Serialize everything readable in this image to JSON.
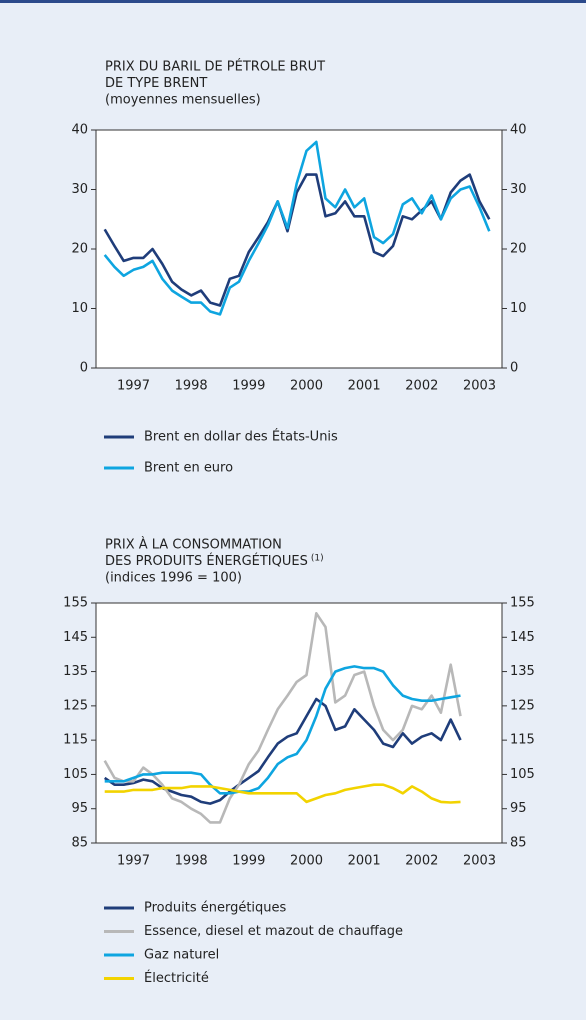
{
  "chart_data": [
    {
      "type": "line",
      "title": [
        "PRIX DU BARIL DE PÉTROLE BRUT",
        "DE TYPE BRENT"
      ],
      "subtitle": "(moyennes mensuelles)",
      "x": [
        1997,
        1997.17,
        1997.33,
        1997.5,
        1997.67,
        1997.83,
        1998,
        1998.17,
        1998.33,
        1998.5,
        1998.67,
        1998.83,
        1999,
        1999.17,
        1999.33,
        1999.5,
        1999.67,
        1999.83,
        2000,
        2000.17,
        2000.33,
        2000.5,
        2000.67,
        2000.83,
        2001,
        2001.17,
        2001.33,
        2001.5,
        2001.67,
        2001.83,
        2002,
        2002.17,
        2002.33,
        2002.5,
        2002.67,
        2002.83,
        2003,
        2003.17,
        2003.33,
        2003.5,
        2003.67
      ],
      "series": [
        {
          "name": "Brent en dollar des États-Unis",
          "color": "#1f3d7a",
          "values": [
            23.3,
            20.5,
            18,
            18.5,
            18.5,
            20,
            17.5,
            14.5,
            13.2,
            12.2,
            13,
            11,
            10.5,
            15,
            15.5,
            19.5,
            22,
            24.5,
            28,
            23,
            29.5,
            32.5,
            32.5,
            25.5,
            26,
            28,
            25.5,
            25.5,
            19.5,
            18.8,
            20.5,
            25.5,
            25,
            26.5,
            28,
            25,
            29.5,
            31.5,
            32.5,
            28,
            25
          ]
        },
        {
          "name": "Brent en euro",
          "color": "#0ea5e0",
          "values": [
            19,
            17,
            15.5,
            16.5,
            17,
            18,
            15,
            13,
            12,
            11,
            11,
            9.5,
            9,
            13.5,
            14.5,
            18,
            21,
            24,
            28,
            23.5,
            31,
            36.5,
            38,
            28.5,
            27,
            30,
            27,
            28.5,
            22,
            21,
            22.5,
            27.5,
            28.5,
            26,
            29,
            25,
            28.5,
            30,
            30.5,
            27,
            23
          ]
        }
      ],
      "xlim": [
        1996.85,
        2003.89
      ],
      "xticks": [
        {
          "value": 1997.5,
          "label": "1997"
        },
        {
          "value": 1998.5,
          "label": "1998"
        },
        {
          "value": 1999.5,
          "label": "1999"
        },
        {
          "value": 2000.5,
          "label": "2000"
        },
        {
          "value": 2001.5,
          "label": "2001"
        },
        {
          "value": 2002.5,
          "label": "2002"
        },
        {
          "value": 2003.5,
          "label": "2003"
        }
      ],
      "ylim": [
        0,
        40
      ],
      "yticks": [
        0,
        10,
        20,
        30,
        40
      ],
      "y2lim": [
        0,
        40
      ],
      "y2ticks": [
        0,
        10,
        20,
        30,
        40
      ]
    },
    {
      "type": "line",
      "title": [
        "PRIX À LA CONSOMMATION",
        "DES PRODUITS ÉNERGÉTIQUES"
      ],
      "title_note": "(1)",
      "subtitle": "(indices 1996 = 100)",
      "x": [
        1997,
        1997.17,
        1997.33,
        1997.5,
        1997.67,
        1997.83,
        1998,
        1998.17,
        1998.33,
        1998.5,
        1998.67,
        1998.83,
        1999,
        1999.17,
        1999.33,
        1999.5,
        1999.67,
        1999.83,
        2000,
        2000.17,
        2000.33,
        2000.5,
        2000.67,
        2000.83,
        2001,
        2001.17,
        2001.33,
        2001.5,
        2001.67,
        2001.83,
        2002,
        2002.17,
        2002.33,
        2002.5,
        2002.67,
        2002.83,
        2003,
        2003.17
      ],
      "series": [
        {
          "name": "Produits énergétiques",
          "color": "#1f3d7a",
          "values": [
            104,
            102,
            102,
            102.5,
            103.5,
            103,
            101,
            100,
            99,
            98.5,
            97,
            96.5,
            97.5,
            100,
            102,
            104,
            106,
            110,
            114,
            116,
            117,
            122,
            127,
            125,
            118,
            119,
            124,
            121,
            118,
            114,
            113,
            117,
            114,
            116,
            117,
            115,
            121,
            115
          ]
        },
        {
          "name": "Essence, diesel et mazout de chauffage",
          "color": "#b8b8b8",
          "values": [
            109,
            104,
            103,
            103,
            107,
            105,
            102,
            98,
            97,
            95,
            93.5,
            91,
            91,
            98,
            102,
            108,
            112,
            118,
            124,
            128,
            132,
            134,
            152,
            148,
            126,
            128,
            134,
            135,
            125,
            118,
            115,
            118,
            125,
            124,
            128,
            123,
            137,
            122
          ]
        },
        {
          "name": "Gaz naturel",
          "color": "#0ea5e0",
          "values": [
            103,
            103,
            103,
            104,
            105,
            105,
            105.5,
            105.5,
            105.5,
            105.5,
            105,
            102,
            99.5,
            99.5,
            100,
            100,
            101,
            104,
            108,
            110,
            111,
            115,
            122,
            130,
            135,
            136,
            136.5,
            136,
            136,
            135,
            131,
            128,
            127,
            126.5,
            126.5,
            127,
            127.5,
            128
          ]
        },
        {
          "name": "Électricité",
          "color": "#f2d300",
          "values": [
            100,
            100,
            100,
            100.5,
            100.5,
            100.5,
            101,
            101,
            101,
            101.5,
            101.5,
            101.5,
            101,
            100.5,
            100,
            99.5,
            99.5,
            99.5,
            99.5,
            99.5,
            99.5,
            97,
            98,
            99,
            99.5,
            100.5,
            101,
            101.5,
            102,
            102,
            101,
            99.5,
            101.5,
            100,
            98,
            97,
            96.8,
            97
          ]
        }
      ],
      "xlim": [
        1996.85,
        2003.89
      ],
      "xticks": [
        {
          "value": 1997.5,
          "label": "1997"
        },
        {
          "value": 1998.5,
          "label": "1998"
        },
        {
          "value": 1999.5,
          "label": "1999"
        },
        {
          "value": 2000.5,
          "label": "2000"
        },
        {
          "value": 2001.5,
          "label": "2001"
        },
        {
          "value": 2002.5,
          "label": "2002"
        },
        {
          "value": 2003.5,
          "label": "2003"
        }
      ],
      "ylim": [
        85,
        155
      ],
      "yticks": [
        85,
        95,
        105,
        115,
        125,
        135,
        145,
        155
      ],
      "y2lim": [
        85,
        155
      ],
      "y2ticks": [
        85,
        95,
        105,
        115,
        125,
        135,
        145,
        155
      ]
    }
  ]
}
